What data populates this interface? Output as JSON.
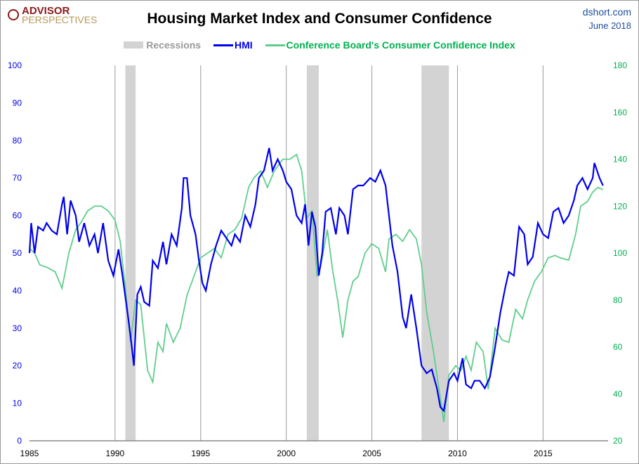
{
  "header": {
    "logo_line1": "ADVISOR",
    "logo_line2": "PERSPECTIVES",
    "source": "dshort.com",
    "date": "June 2018"
  },
  "colors": {
    "hmi": "#0000ee",
    "cci": "#5fce8c",
    "recession": "#d3d3d3",
    "left_axis": "#0000ee",
    "right_axis": "#00b050"
  },
  "chart_data": {
    "type": "line",
    "title": "Housing Market Index and Consumer Confidence",
    "legend": {
      "placement": "top",
      "entries": [
        "Recessions",
        "HMI",
        "Conference Board's Consumer Confidence Index"
      ]
    },
    "x_ticks": [
      1985,
      1990,
      1995,
      2000,
      2005,
      2010,
      2015
    ],
    "xlim": [
      1985,
      2018.8
    ],
    "y_left": {
      "lim": [
        0,
        100
      ],
      "ticks": [
        0,
        10,
        20,
        30,
        40,
        50,
        60,
        70,
        80,
        90,
        100
      ]
    },
    "y_right": {
      "lim": [
        20,
        180
      ],
      "ticks": [
        20,
        40,
        60,
        80,
        100,
        120,
        140,
        160,
        180
      ]
    },
    "grid": "vertical",
    "recessions": [
      [
        1990.6,
        1991.2
      ],
      [
        2001.2,
        2001.9
      ],
      [
        2007.9,
        2009.5
      ]
    ],
    "series": [
      {
        "name": "HMI",
        "axis": "left",
        "points": [
          [
            1985.0,
            50
          ],
          [
            1985.1,
            58
          ],
          [
            1985.3,
            50
          ],
          [
            1985.5,
            57
          ],
          [
            1985.8,
            56
          ],
          [
            1986.0,
            58
          ],
          [
            1986.3,
            56
          ],
          [
            1986.6,
            55
          ],
          [
            1986.9,
            63
          ],
          [
            1987.0,
            65
          ],
          [
            1987.2,
            55
          ],
          [
            1987.4,
            64
          ],
          [
            1987.7,
            60
          ],
          [
            1987.9,
            53
          ],
          [
            1988.2,
            58
          ],
          [
            1988.5,
            52
          ],
          [
            1988.8,
            55
          ],
          [
            1989.0,
            50
          ],
          [
            1989.3,
            58
          ],
          [
            1989.6,
            48
          ],
          [
            1989.9,
            44
          ],
          [
            1990.2,
            51
          ],
          [
            1990.4,
            45
          ],
          [
            1990.7,
            35
          ],
          [
            1990.9,
            28
          ],
          [
            1991.1,
            20
          ],
          [
            1991.3,
            39
          ],
          [
            1991.5,
            41
          ],
          [
            1991.7,
            37
          ],
          [
            1992.0,
            36
          ],
          [
            1992.2,
            48
          ],
          [
            1992.5,
            46
          ],
          [
            1992.8,
            53
          ],
          [
            1993.0,
            47
          ],
          [
            1993.3,
            55
          ],
          [
            1993.6,
            52
          ],
          [
            1993.9,
            62
          ],
          [
            1994.0,
            70
          ],
          [
            1994.2,
            70
          ],
          [
            1994.4,
            60
          ],
          [
            1994.7,
            55
          ],
          [
            1994.9,
            48
          ],
          [
            1995.1,
            42
          ],
          [
            1995.3,
            40
          ],
          [
            1995.6,
            47
          ],
          [
            1995.9,
            52
          ],
          [
            1996.2,
            56
          ],
          [
            1996.5,
            54
          ],
          [
            1996.8,
            52
          ],
          [
            1997.0,
            55
          ],
          [
            1997.3,
            53
          ],
          [
            1997.6,
            60
          ],
          [
            1997.9,
            57
          ],
          [
            1998.2,
            63
          ],
          [
            1998.4,
            70
          ],
          [
            1998.7,
            72
          ],
          [
            1999.0,
            78
          ],
          [
            1999.2,
            72
          ],
          [
            1999.5,
            75
          ],
          [
            1999.8,
            72
          ],
          [
            2000.0,
            69
          ],
          [
            2000.3,
            67
          ],
          [
            2000.6,
            60
          ],
          [
            2000.9,
            58
          ],
          [
            2001.1,
            63
          ],
          [
            2001.3,
            52
          ],
          [
            2001.5,
            61
          ],
          [
            2001.7,
            57
          ],
          [
            2001.9,
            44
          ],
          [
            2002.1,
            50
          ],
          [
            2002.3,
            61
          ],
          [
            2002.6,
            62
          ],
          [
            2002.9,
            55
          ],
          [
            2003.1,
            62
          ],
          [
            2003.4,
            60
          ],
          [
            2003.6,
            55
          ],
          [
            2003.9,
            67
          ],
          [
            2004.2,
            68
          ],
          [
            2004.5,
            68
          ],
          [
            2004.9,
            70
          ],
          [
            2005.2,
            69
          ],
          [
            2005.5,
            72
          ],
          [
            2005.8,
            68
          ],
          [
            2006.0,
            60
          ],
          [
            2006.2,
            52
          ],
          [
            2006.5,
            45
          ],
          [
            2006.8,
            33
          ],
          [
            2007.0,
            30
          ],
          [
            2007.3,
            39
          ],
          [
            2007.6,
            30
          ],
          [
            2007.9,
            20
          ],
          [
            2008.2,
            18
          ],
          [
            2008.5,
            19
          ],
          [
            2008.8,
            14
          ],
          [
            2009.0,
            9
          ],
          [
            2009.2,
            8
          ],
          [
            2009.5,
            16
          ],
          [
            2009.8,
            18
          ],
          [
            2010.0,
            16
          ],
          [
            2010.3,
            22
          ],
          [
            2010.5,
            15
          ],
          [
            2010.8,
            14
          ],
          [
            2011.0,
            16
          ],
          [
            2011.3,
            16
          ],
          [
            2011.6,
            14
          ],
          [
            2011.9,
            17
          ],
          [
            2012.2,
            25
          ],
          [
            2012.5,
            34
          ],
          [
            2012.8,
            41
          ],
          [
            2013.0,
            45
          ],
          [
            2013.3,
            44
          ],
          [
            2013.6,
            57
          ],
          [
            2013.9,
            55
          ],
          [
            2014.1,
            47
          ],
          [
            2014.4,
            49
          ],
          [
            2014.7,
            58
          ],
          [
            2015.0,
            55
          ],
          [
            2015.3,
            54
          ],
          [
            2015.6,
            61
          ],
          [
            2015.9,
            62
          ],
          [
            2016.2,
            58
          ],
          [
            2016.5,
            60
          ],
          [
            2016.8,
            64
          ],
          [
            2017.0,
            68
          ],
          [
            2017.3,
            70
          ],
          [
            2017.6,
            67
          ],
          [
            2017.9,
            70
          ],
          [
            2018.0,
            74
          ],
          [
            2018.3,
            70
          ],
          [
            2018.5,
            68
          ]
        ]
      },
      {
        "name": "Conference Board's Consumer Confidence Index",
        "axis": "right",
        "points": [
          [
            1985.0,
            102
          ],
          [
            1985.3,
            100
          ],
          [
            1985.6,
            95
          ],
          [
            1986.0,
            94
          ],
          [
            1986.5,
            92
          ],
          [
            1986.9,
            85
          ],
          [
            1987.3,
            100
          ],
          [
            1987.7,
            110
          ],
          [
            1988.0,
            113
          ],
          [
            1988.4,
            118
          ],
          [
            1988.8,
            120
          ],
          [
            1989.2,
            120
          ],
          [
            1989.6,
            118
          ],
          [
            1990.0,
            114
          ],
          [
            1990.3,
            105
          ],
          [
            1990.6,
            85
          ],
          [
            1990.9,
            62
          ],
          [
            1991.2,
            80
          ],
          [
            1991.5,
            78
          ],
          [
            1991.9,
            50
          ],
          [
            1992.2,
            45
          ],
          [
            1992.5,
            62
          ],
          [
            1992.8,
            58
          ],
          [
            1993.0,
            70
          ],
          [
            1993.4,
            62
          ],
          [
            1993.8,
            68
          ],
          [
            1994.2,
            82
          ],
          [
            1994.6,
            90
          ],
          [
            1995.0,
            98
          ],
          [
            1995.4,
            100
          ],
          [
            1995.8,
            102
          ],
          [
            1996.2,
            98
          ],
          [
            1996.6,
            108
          ],
          [
            1997.0,
            110
          ],
          [
            1997.4,
            115
          ],
          [
            1997.8,
            128
          ],
          [
            1998.1,
            132
          ],
          [
            1998.5,
            135
          ],
          [
            1998.9,
            128
          ],
          [
            1999.3,
            135
          ],
          [
            1999.8,
            140
          ],
          [
            2000.2,
            140
          ],
          [
            2000.6,
            142
          ],
          [
            2000.9,
            135
          ],
          [
            2001.2,
            115
          ],
          [
            2001.5,
            118
          ],
          [
            2001.8,
            90
          ],
          [
            2002.0,
            94
          ],
          [
            2002.4,
            110
          ],
          [
            2002.7,
            93
          ],
          [
            2003.0,
            80
          ],
          [
            2003.3,
            64
          ],
          [
            2003.6,
            80
          ],
          [
            2003.9,
            88
          ],
          [
            2004.2,
            90
          ],
          [
            2004.6,
            100
          ],
          [
            2005.0,
            104
          ],
          [
            2005.4,
            102
          ],
          [
            2005.8,
            92
          ],
          [
            2006.0,
            106
          ],
          [
            2006.4,
            108
          ],
          [
            2006.8,
            105
          ],
          [
            2007.2,
            110
          ],
          [
            2007.6,
            106
          ],
          [
            2007.9,
            95
          ],
          [
            2008.2,
            75
          ],
          [
            2008.6,
            58
          ],
          [
            2009.0,
            38
          ],
          [
            2009.2,
            28
          ],
          [
            2009.5,
            48
          ],
          [
            2009.9,
            52
          ],
          [
            2010.2,
            50
          ],
          [
            2010.5,
            56
          ],
          [
            2010.8,
            50
          ],
          [
            2011.1,
            62
          ],
          [
            2011.5,
            58
          ],
          [
            2011.8,
            42
          ],
          [
            2012.2,
            68
          ],
          [
            2012.6,
            63
          ],
          [
            2013.0,
            62
          ],
          [
            2013.4,
            76
          ],
          [
            2013.8,
            72
          ],
          [
            2014.1,
            80
          ],
          [
            2014.5,
            88
          ],
          [
            2014.9,
            92
          ],
          [
            2015.3,
            98
          ],
          [
            2015.7,
            99
          ],
          [
            2016.0,
            98
          ],
          [
            2016.5,
            97
          ],
          [
            2016.9,
            108
          ],
          [
            2017.2,
            120
          ],
          [
            2017.6,
            122
          ],
          [
            2017.9,
            126
          ],
          [
            2018.2,
            128
          ],
          [
            2018.5,
            127
          ]
        ]
      }
    ]
  }
}
